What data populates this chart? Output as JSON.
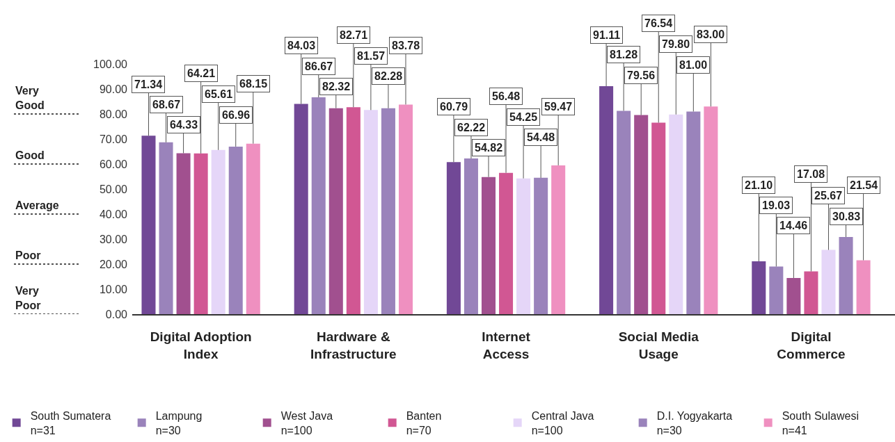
{
  "chart_data": {
    "type": "bar",
    "categories": [
      "Digital Adoption\nIndex",
      "Hardware &\nInfrastructure",
      "Internet\nAccess",
      "Social Media\nUsage",
      "Digital\nCommerce"
    ],
    "series": [
      {
        "name": "South Sumatera\nn=31",
        "color": "#714896",
        "values": [
          71.34,
          84.03,
          60.79,
          91.11,
          21.1
        ],
        "value_labels": [
          "71.34",
          "84.03",
          "60.79",
          "91.11",
          "21.10"
        ]
      },
      {
        "name": "Lampung\nn=30",
        "color": "#9a83bb",
        "values": [
          68.67,
          86.67,
          62.22,
          81.28,
          19.03
        ],
        "value_labels": [
          "68.67",
          "86.67",
          "62.22",
          "81.28",
          "19.03"
        ]
      },
      {
        "name": "West Java\nn=100",
        "color": "#a1508f",
        "values": [
          64.33,
          82.32,
          54.82,
          79.56,
          14.46
        ],
        "value_labels": [
          "64.33",
          "82.32",
          "54.82",
          "79.56",
          "14.46"
        ]
      },
      {
        "name": "Banten\nn=70",
        "color": "#d15793",
        "values": [
          64.21,
          82.71,
          56.48,
          76.54,
          17.08
        ],
        "value_labels": [
          "64.21",
          "82.71",
          "56.48",
          "76.54",
          "17.08"
        ]
      },
      {
        "name": "Central Java\nn=100",
        "color": "#e5d6f8",
        "values": [
          65.61,
          81.57,
          54.25,
          79.8,
          25.67
        ],
        "value_labels": [
          "65.61",
          "81.57",
          "54.25",
          "79.80",
          "25.67"
        ]
      },
      {
        "name": "D.I. Yogyakarta\nn=30",
        "color": "#9a83bb",
        "values": [
          66.96,
          82.28,
          54.48,
          81.0,
          30.83
        ],
        "value_labels": [
          "66.96",
          "82.28",
          "54.48",
          "81.00",
          "30.83"
        ]
      },
      {
        "name": "South Sulawesi\nn=41",
        "color": "#ef90c0",
        "values": [
          68.15,
          83.78,
          59.47,
          83.0,
          21.54
        ],
        "value_labels": [
          "68.15",
          "83.78",
          "59.47",
          "83.00",
          "21.54"
        ]
      }
    ],
    "ylim": [
      0,
      100
    ],
    "yticks": [
      {
        "value": 0,
        "label": "0.00"
      },
      {
        "value": 10,
        "label": "10.00"
      },
      {
        "value": 20,
        "label": "20.00"
      },
      {
        "value": 30,
        "label": "30.00"
      },
      {
        "value": 40,
        "label": "40.00"
      },
      {
        "value": 50,
        "label": "50.00"
      },
      {
        "value": 60,
        "label": "60.00"
      },
      {
        "value": 70,
        "label": "70.00"
      },
      {
        "value": 80,
        "label": "80.00"
      },
      {
        "value": 90,
        "label": "90.00"
      },
      {
        "value": 100,
        "label": "100.00"
      }
    ],
    "ref_lines": [
      {
        "axis": "y",
        "value": 80,
        "label": "Very\nGood",
        "line_style": "dotted",
        "color": "#1a1a1a"
      },
      {
        "axis": "y",
        "value": 60,
        "label": "Good",
        "line_style": "dotted",
        "color": "#1a1a1a"
      },
      {
        "axis": "y",
        "value": 40,
        "label": "Average",
        "line_style": "dotted",
        "color": "#1a1a1a"
      },
      {
        "axis": "y",
        "value": 20,
        "label": "Poor",
        "line_style": "dotted",
        "color": "#1a1a1a"
      },
      {
        "axis": "y",
        "value": 0,
        "label": "Very\nPoor",
        "line_style": "dotted",
        "color": "#1a1a1a"
      }
    ],
    "grid": false,
    "legend": "bottom"
  }
}
